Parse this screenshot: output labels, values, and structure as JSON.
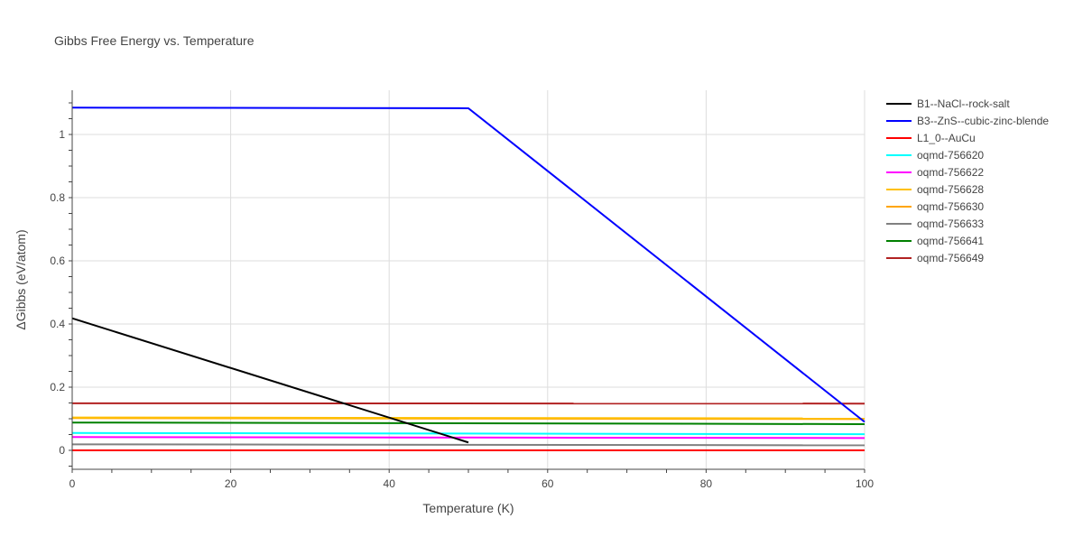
{
  "chart_data": {
    "type": "line",
    "title": "Gibbs Free Energy vs. Temperature",
    "xlabel": "Temperature (K)",
    "ylabel": "ΔGibbs (eV/atom)",
    "xlim": [
      0,
      100
    ],
    "ylim": [
      -0.06,
      1.14
    ],
    "x_ticks": [
      0,
      20,
      40,
      60,
      80,
      100
    ],
    "y_ticks": [
      0,
      0.2,
      0.4,
      0.6,
      0.8,
      1
    ],
    "grid": true,
    "legend_position": "right",
    "series": [
      {
        "name": "B1--NaCl--rock-salt",
        "color": "#000000",
        "x": [
          0,
          50
        ],
        "y": [
          0.418,
          0.025
        ]
      },
      {
        "name": "B3--ZnS--cubic-zinc-blende",
        "color": "#0000ff",
        "x": [
          0,
          50,
          100
        ],
        "y": [
          1.085,
          1.083,
          0.09
        ]
      },
      {
        "name": "L1_0--AuCu",
        "color": "#ff0000",
        "x": [
          0,
          100
        ],
        "y": [
          0.0,
          0.0
        ]
      },
      {
        "name": "oqmd-756620",
        "color": "#00ffff",
        "x": [
          0,
          100
        ],
        "y": [
          0.055,
          0.051
        ]
      },
      {
        "name": "oqmd-756622",
        "color": "#ff00ff",
        "x": [
          0,
          100
        ],
        "y": [
          0.042,
          0.039
        ]
      },
      {
        "name": "oqmd-756628",
        "color": "#ffc000",
        "x": [
          0,
          100
        ],
        "y": [
          0.104,
          0.101
        ]
      },
      {
        "name": "oqmd-756630",
        "color": "#ffa500",
        "x": [
          0,
          100
        ],
        "y": [
          0.102,
          0.099
        ]
      },
      {
        "name": "oqmd-756633",
        "color": "#808080",
        "x": [
          0,
          100
        ],
        "y": [
          0.019,
          0.016
        ]
      },
      {
        "name": "oqmd-756641",
        "color": "#008000",
        "x": [
          0,
          100
        ],
        "y": [
          0.088,
          0.083
        ]
      },
      {
        "name": "oqmd-756649",
        "color": "#b22222",
        "x": [
          0,
          100
        ],
        "y": [
          0.149,
          0.148
        ]
      }
    ]
  }
}
